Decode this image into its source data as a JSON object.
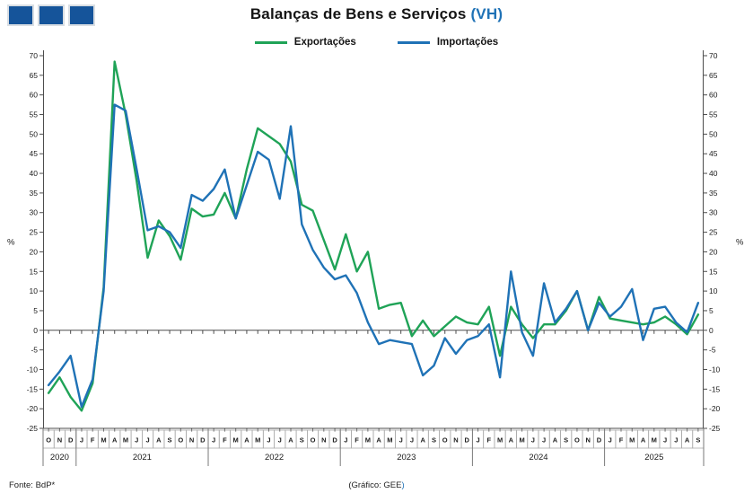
{
  "logo": {
    "square_count": 3,
    "square_color": "#15549A"
  },
  "title": {
    "main": "Balanças de Bens e Serviços",
    "suffix": " (VH)"
  },
  "legend": {
    "items": [
      {
        "label": "Exportações",
        "color": "#1FA357"
      },
      {
        "label": "Importações",
        "color": "#1F72B6"
      }
    ]
  },
  "footer": {
    "source": "Fonte: BdP*",
    "credit_main": "(Gráfico: GEE",
    "credit_suffix": ")"
  },
  "axis": {
    "unit_left": "%",
    "unit_right": "%",
    "min": -25,
    "max": 70,
    "step": 5
  },
  "chart_data": {
    "type": "line",
    "title": "Balanças de Bens e Serviços (VH)",
    "ylabel": "%",
    "ylim": [
      -25,
      70
    ],
    "ytick_step": 5,
    "grid": false,
    "legend_position": "top-center",
    "x_months": [
      "O",
      "N",
      "D",
      "J",
      "F",
      "M",
      "A",
      "M",
      "J",
      "J",
      "A",
      "S",
      "O",
      "N",
      "D",
      "J",
      "F",
      "M",
      "A",
      "M",
      "J",
      "J",
      "A",
      "S",
      "O",
      "N",
      "D",
      "J",
      "F",
      "M",
      "A",
      "M",
      "J",
      "J",
      "A",
      "S",
      "O",
      "N",
      "D",
      "J",
      "F",
      "M",
      "A",
      "M",
      "J",
      "J",
      "A",
      "S",
      "O",
      "N",
      "D",
      "J",
      "F",
      "M",
      "A",
      "M",
      "J",
      "J",
      "A",
      "S"
    ],
    "x_years": [
      {
        "label": "2020",
        "months": 3
      },
      {
        "label": "2021",
        "months": 12
      },
      {
        "label": "2022",
        "months": 12
      },
      {
        "label": "2023",
        "months": 12
      },
      {
        "label": "2024",
        "months": 12
      },
      {
        "label": "2025",
        "months": 9
      }
    ],
    "series": [
      {
        "name": "Exportações",
        "color": "#1FA357",
        "values": [
          -16,
          -12,
          -17,
          -20.5,
          -13.5,
          11,
          68.5,
          55,
          38,
          18.5,
          28,
          24,
          18,
          31,
          29,
          29.5,
          35,
          28.5,
          41,
          51.5,
          49.5,
          47.5,
          43,
          32,
          30.5,
          23,
          15.5,
          24.5,
          15,
          20,
          5.5,
          6.5,
          7,
          -1.5,
          2.5,
          -1.5,
          1,
          3.5,
          2,
          1.5,
          6,
          -6.5,
          6,
          1.5,
          -2,
          1.5,
          1.5,
          5,
          10,
          0,
          8.5,
          3,
          2.5,
          2,
          1.5,
          2,
          3.5,
          1.5,
          -1,
          4
        ]
      },
      {
        "name": "Importações",
        "color": "#1F72B6",
        "values": [
          -14,
          -10.5,
          -6.5,
          -19.5,
          -12.5,
          10,
          57.5,
          56,
          41,
          25.5,
          26.5,
          25,
          21,
          34.5,
          33,
          36,
          41,
          28.5,
          37,
          45.5,
          43.5,
          33.5,
          52,
          27,
          20.5,
          16,
          13,
          14,
          9.5,
          2,
          -3.5,
          -2.5,
          -3,
          -3.5,
          -11.5,
          -9,
          -2,
          -6,
          -2.5,
          -1.5,
          1.5,
          -12,
          15,
          -0.5,
          -6.5,
          12,
          2,
          5.5,
          10,
          0,
          7,
          3.5,
          6,
          10.5,
          -2.5,
          5.5,
          6,
          2,
          -0.5,
          7
        ]
      }
    ]
  }
}
